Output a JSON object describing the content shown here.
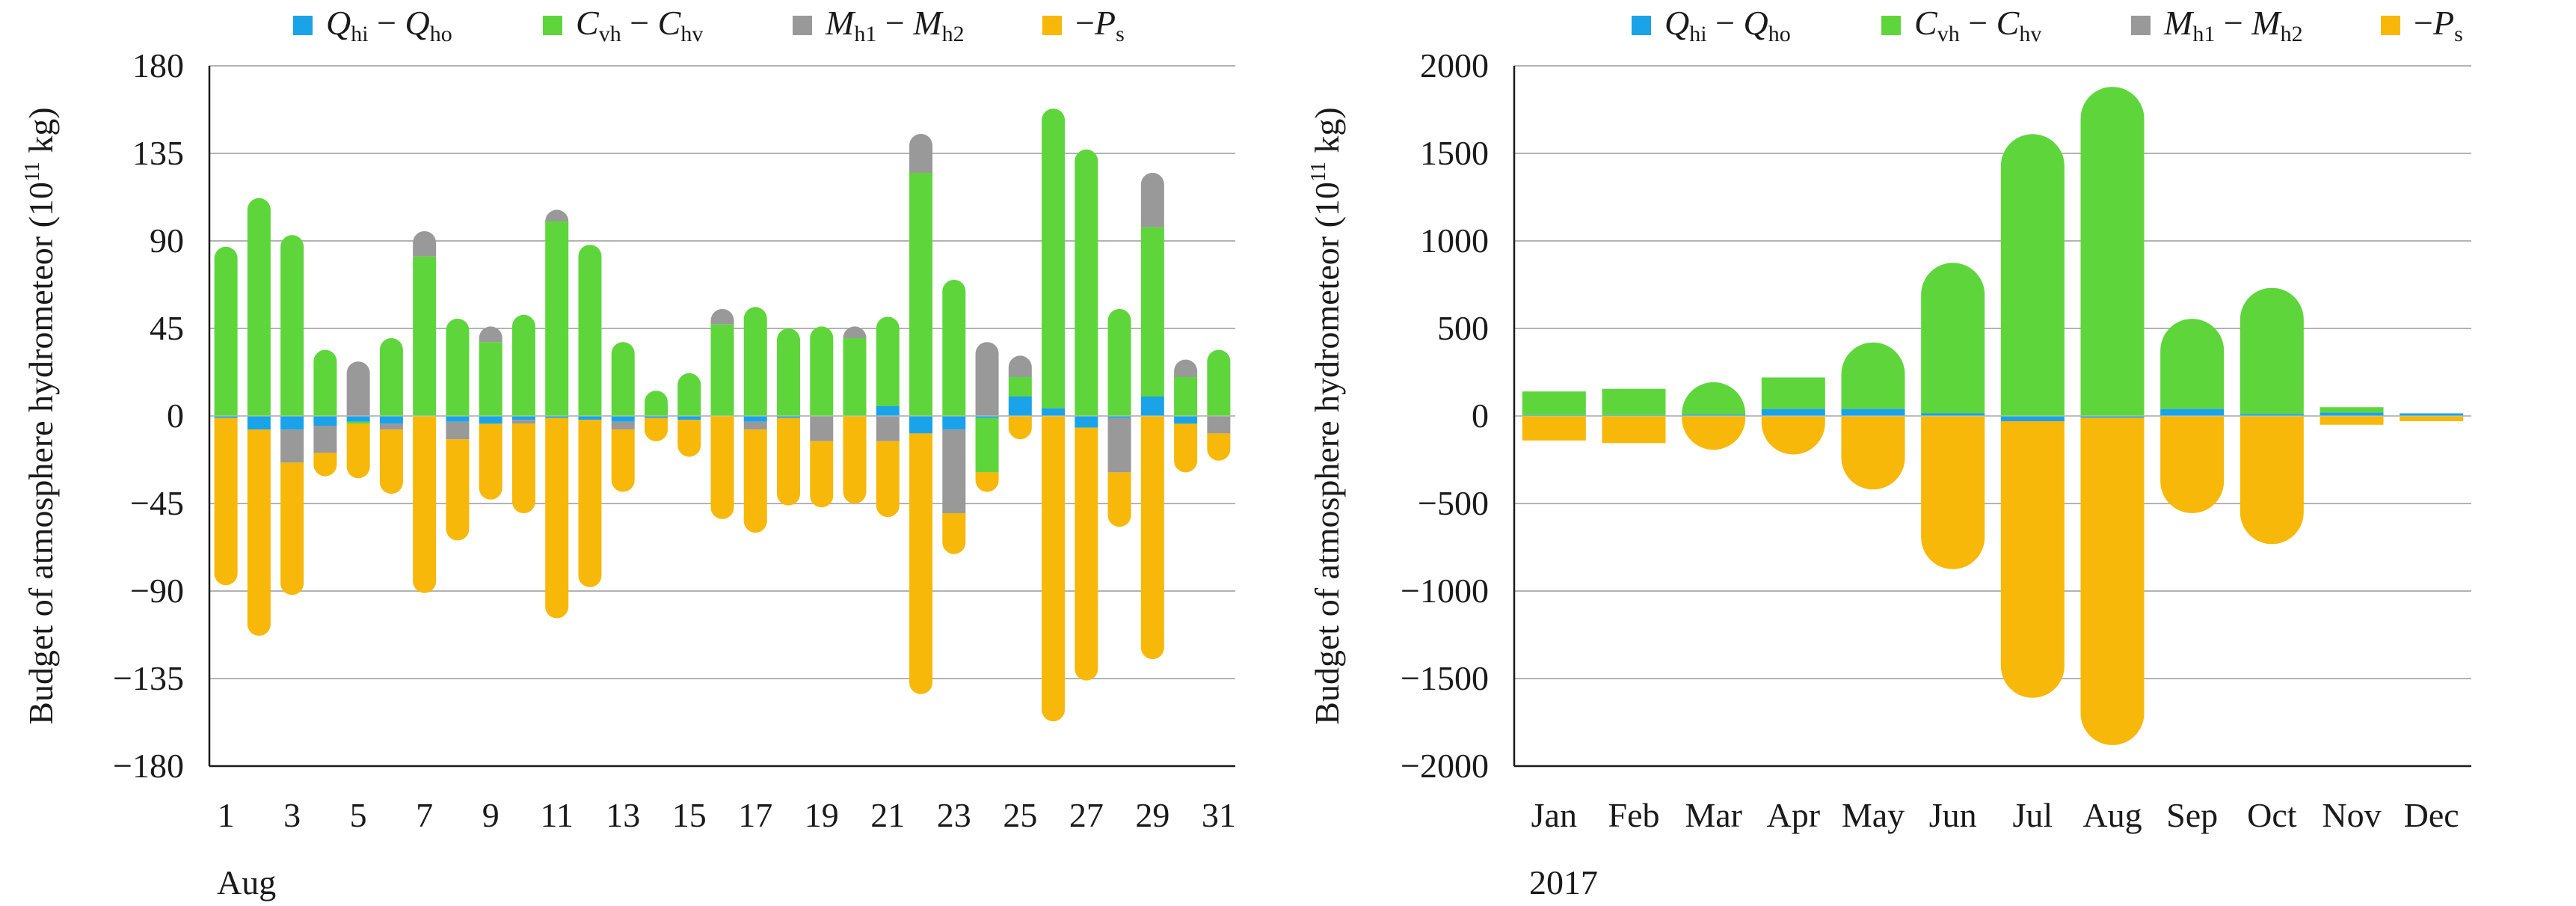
{
  "chart_data": [
    {
      "type": "bar",
      "stacked": true,
      "ylabel": "Budget of atmosphere hydrometeor (10^11 kg)",
      "ylim": [
        -180,
        180
      ],
      "yticks": [
        180,
        135,
        90,
        45,
        0,
        -45,
        -90,
        -135,
        -180
      ],
      "ytick_labels": [
        "180",
        "135",
        "90",
        "45",
        "0",
        "−45",
        "−90",
        "−135",
        "−180"
      ],
      "categories": [
        "1",
        "2",
        "3",
        "4",
        "5",
        "6",
        "7",
        "8",
        "9",
        "10",
        "11",
        "12",
        "13",
        "14",
        "15",
        "16",
        "17",
        "18",
        "19",
        "20",
        "21",
        "22",
        "23",
        "24",
        "25",
        "26",
        "27",
        "28",
        "29",
        "30",
        "31"
      ],
      "xtick_labels": [
        "1",
        "3",
        "5",
        "7",
        "9",
        "11",
        "13",
        "15",
        "17",
        "19",
        "21",
        "23",
        "25",
        "27",
        "29",
        "31"
      ],
      "xtick_categories": [
        "1",
        "3",
        "5",
        "7",
        "9",
        "11",
        "13",
        "15",
        "17",
        "19",
        "21",
        "23",
        "25",
        "27",
        "29",
        "31"
      ],
      "x_group_label": "Aug",
      "grid": "horizontal",
      "legend": "top",
      "series": [
        {
          "key": "q",
          "color": "#1aa3e8",
          "values": [
            -1,
            -7,
            -7,
            -5,
            -3,
            -4,
            0,
            -3,
            -4,
            -2,
            -1,
            -2,
            -3,
            -1,
            -2,
            0,
            -3,
            -1,
            0,
            0,
            5,
            -9,
            -7,
            -1,
            10,
            4,
            -6,
            -1,
            10,
            -4,
            0
          ]
        },
        {
          "key": "c",
          "color": "#5ed63b",
          "values": [
            87,
            112,
            93,
            34,
            -1,
            40,
            82,
            50,
            38,
            52,
            100,
            88,
            38,
            13,
            22,
            47,
            56,
            45,
            46,
            40,
            46,
            125,
            70,
            -28,
            10,
            154,
            137,
            55,
            87,
            20,
            34
          ]
        },
        {
          "key": "m",
          "color": "#999999",
          "values": [
            0,
            0,
            -17,
            -14,
            28,
            -3,
            13,
            -9,
            8,
            -2,
            6,
            0,
            -4,
            0,
            0,
            8,
            -4,
            0,
            -13,
            6,
            -13,
            20,
            -43,
            38,
            11,
            0,
            0,
            -28,
            28,
            9,
            -9
          ]
        },
        {
          "key": "ps",
          "color": "#f7b80a",
          "values": [
            -86,
            -106,
            -68,
            -12,
            -28,
            -33,
            -91,
            -52,
            -39,
            -46,
            -103,
            -86,
            -32,
            -12,
            -19,
            -53,
            -53,
            -45,
            -34,
            -45,
            -39,
            -134,
            -21,
            -10,
            -12,
            -157,
            -130,
            -28,
            -125,
            -25,
            -14
          ]
        }
      ]
    },
    {
      "type": "bar",
      "stacked": true,
      "ylabel": "Budget of atmosphere hydrometeor (10^11 kg)",
      "ylim": [
        -2000,
        2000
      ],
      "yticks": [
        2000,
        1500,
        1000,
        500,
        0,
        -500,
        -1000,
        -1500,
        -2000
      ],
      "ytick_labels": [
        "2000",
        "1500",
        "1000",
        "500",
        "0",
        "−500",
        "−1000",
        "−1500",
        "−2000"
      ],
      "categories": [
        "Jan",
        "Feb",
        "Mar",
        "Apr",
        "May",
        "Jun",
        "Jul",
        "Aug",
        "Sep",
        "Oct",
        "Nov",
        "Dec"
      ],
      "xtick_labels": [
        "Jan",
        "Feb",
        "Mar",
        "Apr",
        "May",
        "Jun",
        "Jul",
        "Aug",
        "Sep",
        "Oct",
        "Nov",
        "Dec"
      ],
      "xtick_categories": [
        "Jan",
        "Feb",
        "Mar",
        "Apr",
        "May",
        "Jun",
        "Jul",
        "Aug",
        "Sep",
        "Oct",
        "Nov",
        "Dec"
      ],
      "x_group_label": "2017",
      "grid": "horizontal",
      "legend": "top",
      "series": [
        {
          "key": "q",
          "color": "#1aa3e8",
          "values": [
            5,
            5,
            8,
            40,
            40,
            15,
            -30,
            -10,
            40,
            12,
            20,
            15
          ]
        },
        {
          "key": "c",
          "color": "#5ed63b",
          "values": [
            135,
            150,
            185,
            180,
            380,
            860,
            1610,
            1880,
            515,
            720,
            30,
            -2
          ]
        },
        {
          "key": "m",
          "color": "#999999",
          "values": [
            0,
            0,
            0,
            0,
            0,
            0,
            0,
            0,
            0,
            0,
            0,
            0
          ]
        },
        {
          "key": "ps",
          "color": "#f7b80a",
          "values": [
            -140,
            -155,
            -193,
            -220,
            -420,
            -875,
            -1580,
            -1870,
            -555,
            -732,
            -50,
            -28
          ]
        }
      ]
    }
  ],
  "legend": {
    "items": [
      {
        "key": "q",
        "color": "#1aa3e8",
        "main1": "Q",
        "sub1": "hi",
        "op": "−",
        "main2": "Q",
        "sub2": "ho"
      },
      {
        "key": "c",
        "color": "#5ed63b",
        "main1": "C",
        "sub1": "vh",
        "op": "−",
        "main2": "C",
        "sub2": "hv"
      },
      {
        "key": "m",
        "color": "#999999",
        "main1": "M",
        "sub1": "h1",
        "op": "−",
        "main2": "M",
        "sub2": "h2"
      },
      {
        "key": "ps",
        "color": "#f7b80a",
        "main1": "P",
        "sub1": "s",
        "op": "−",
        "prefix": true
      }
    ]
  },
  "ylabel_parts": {
    "before": "Budget of atmosphere hydrometeor (10",
    "sup": "11",
    "after": " kg)"
  }
}
